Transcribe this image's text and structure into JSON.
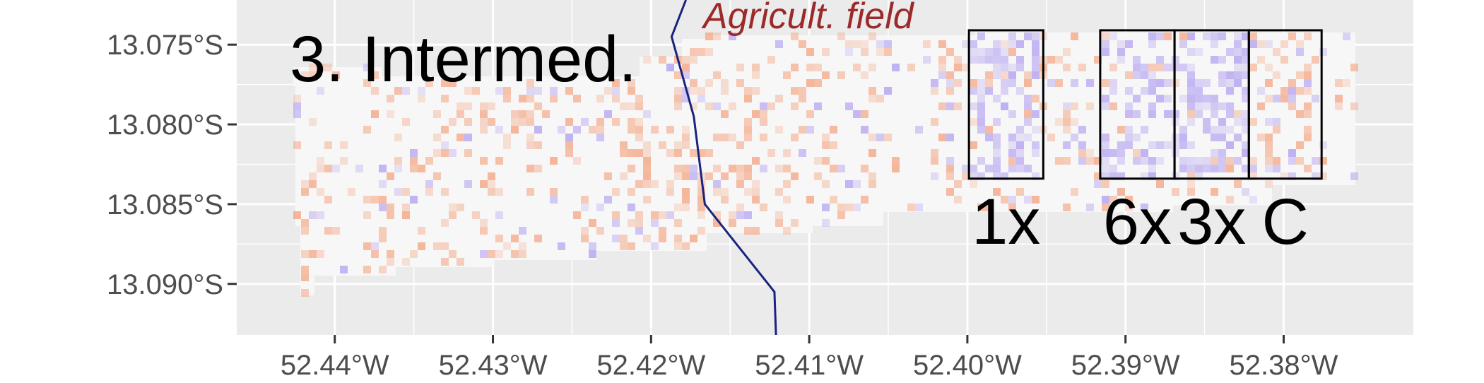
{
  "panel_title": "3. Intermed.",
  "field_label": "Agricult. field",
  "colors": {
    "panel_background": "#ebebeb",
    "grid": "#ffffff",
    "boundary": "#1a237e",
    "field_label": "#9b2a2a",
    "positive": "#f4a582",
    "negative": "#b2a0f0",
    "neutral": "#f7f7f7"
  },
  "axes": {
    "x_ticks": [
      "52.44°W",
      "52.43°W",
      "52.42°W",
      "52.41°W",
      "52.40°W",
      "52.39°W",
      "52.38°W"
    ],
    "y_ticks": [
      "13.075°S",
      "13.080°S",
      "13.085°S",
      "13.090°S"
    ],
    "x_tick_values": [
      -52.44,
      -52.43,
      -52.42,
      -52.41,
      -52.4,
      -52.39,
      -52.38
    ],
    "y_tick_values": [
      -13.075,
      -13.08,
      -13.085,
      -13.09
    ],
    "xlim": [
      -52.4462,
      -52.3718
    ],
    "ylim": [
      -13.0932,
      -13.0722
    ]
  },
  "boundary_line": [
    {
      "lon": -52.4178,
      "lat": -13.0722
    },
    {
      "lon": -52.4187,
      "lat": -13.0745
    },
    {
      "lon": -52.4173,
      "lat": -13.0795
    },
    {
      "lon": -52.4166,
      "lat": -13.085
    },
    {
      "lon": -52.4122,
      "lat": -13.0905
    },
    {
      "lon": -52.4121,
      "lat": -13.0932
    }
  ],
  "plots": [
    {
      "label": "1x",
      "lon_min": -52.3999,
      "lon_max": -52.3952,
      "lat_min": -13.0834,
      "lat_max": -13.0741
    },
    {
      "label": "6x",
      "lon_min": -52.3916,
      "lon_max": -52.3869,
      "lat_min": -13.0834,
      "lat_max": -13.0741
    },
    {
      "label": "3x",
      "lon_min": -52.3869,
      "lon_max": -52.3822,
      "lat_min": -13.0834,
      "lat_max": -13.0741
    },
    {
      "label": "C",
      "lon_min": -52.3822,
      "lon_max": -52.3776,
      "lat_min": -13.0834,
      "lat_max": -13.0741
    }
  ]
}
